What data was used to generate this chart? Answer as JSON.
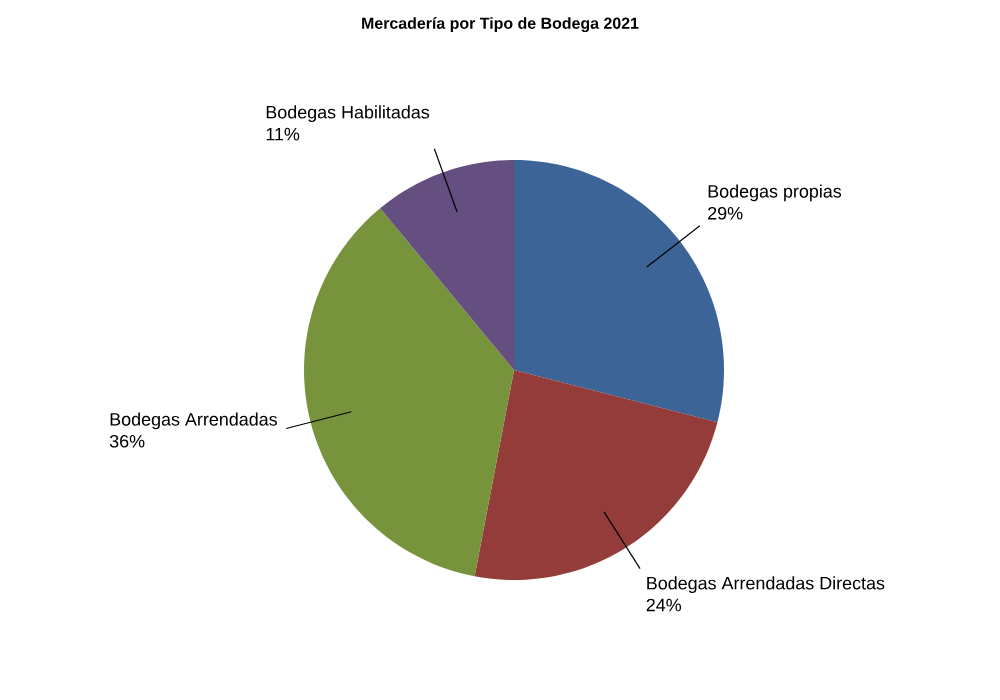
{
  "chart_data": {
    "type": "pie",
    "title": "Mercadería por Tipo de Bodega 2021",
    "categories": [
      "Bodegas propias",
      "Bodegas Arrendadas Directas",
      "Bodegas Arrendadas",
      "Bodegas Habilitadas"
    ],
    "values": [
      29,
      24,
      36,
      11
    ],
    "value_labels": [
      "29%",
      "24%",
      "36%",
      "11%"
    ],
    "colors": [
      "#3c6497",
      "#943c3a",
      "#77933c",
      "#654e80"
    ]
  }
}
